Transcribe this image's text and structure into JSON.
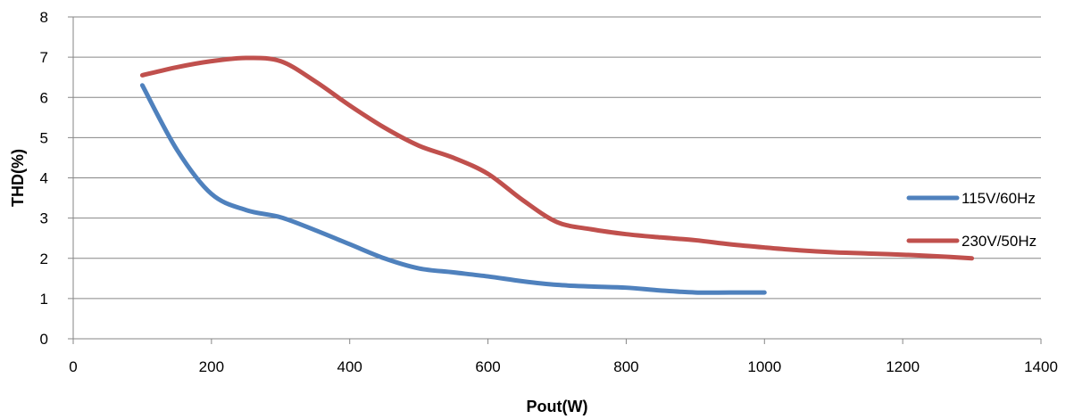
{
  "chart_data": {
    "type": "line",
    "title": "",
    "xlabel": "Pout(W)",
    "ylabel": "THD(%)",
    "xlim": [
      0,
      1400
    ],
    "ylim": [
      0,
      8
    ],
    "xticks": [
      0,
      200,
      400,
      600,
      800,
      1000,
      1200,
      1400
    ],
    "yticks": [
      0,
      1,
      2,
      3,
      4,
      5,
      6,
      7,
      8
    ],
    "grid": "horizontal",
    "legend_position": "right",
    "series": [
      {
        "name": "115V/60Hz",
        "color": "#4F81BD",
        "x": [
          100,
          150,
          200,
          250,
          300,
          350,
          400,
          450,
          500,
          550,
          600,
          650,
          700,
          750,
          800,
          850,
          900,
          950,
          1000
        ],
        "y": [
          6.3,
          4.7,
          3.6,
          3.2,
          3.02,
          2.7,
          2.35,
          2.0,
          1.75,
          1.65,
          1.55,
          1.43,
          1.34,
          1.3,
          1.27,
          1.2,
          1.15,
          1.15,
          1.15
        ]
      },
      {
        "name": "230V/50Hz",
        "color": "#C0504D",
        "x": [
          100,
          150,
          200,
          250,
          300,
          350,
          400,
          450,
          500,
          550,
          600,
          650,
          700,
          750,
          800,
          850,
          900,
          950,
          1000,
          1050,
          1100,
          1150,
          1200,
          1250,
          1300
        ],
        "y": [
          6.55,
          6.75,
          6.9,
          6.98,
          6.9,
          6.4,
          5.8,
          5.25,
          4.8,
          4.5,
          4.1,
          3.45,
          2.9,
          2.72,
          2.6,
          2.52,
          2.45,
          2.35,
          2.27,
          2.2,
          2.15,
          2.12,
          2.09,
          2.05,
          2.0
        ]
      }
    ]
  }
}
